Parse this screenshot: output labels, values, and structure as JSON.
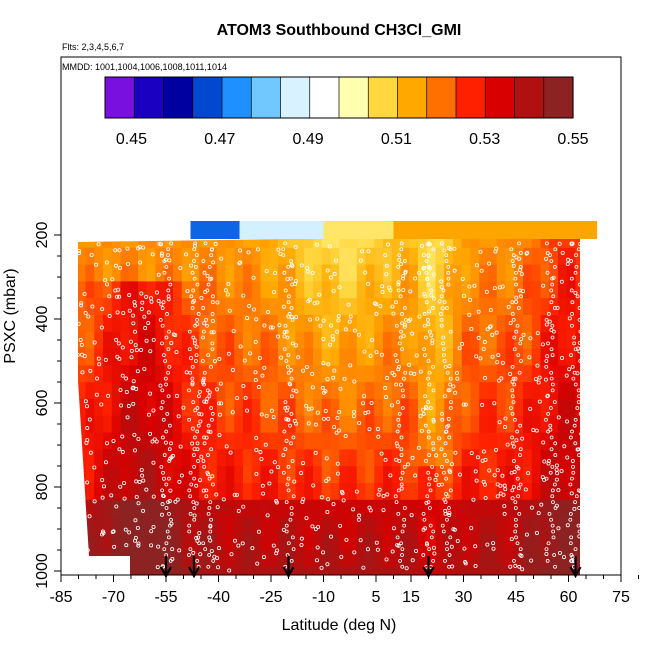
{
  "chart_data": {
    "type": "heatmap",
    "title": "ATOM3 Southbound CH3Cl_GMI",
    "flights_note": "Flts: 2,3,4,5,6,7",
    "mmdd_note": "MMDD: 1001,1004,1006,1008,1011,1014",
    "xlabel": "Latitude (deg N)",
    "ylabel": "PSXC (mbar)",
    "x_ticks": [
      -85,
      -70,
      -55,
      -40,
      -25,
      -10,
      5,
      15,
      30,
      45,
      60,
      75
    ],
    "x_tick_labels": [
      "-85",
      "-70",
      "-55",
      "-40",
      "-25",
      "-10",
      "5",
      "15",
      "30",
      "45",
      "60",
      "75"
    ],
    "xlim": [
      -85,
      75
    ],
    "y_ticks": [
      200,
      400,
      600,
      800,
      1000
    ],
    "y_tick_labels": [
      "200",
      "400",
      "600",
      "800",
      "1000"
    ],
    "ylim": [
      1000,
      200
    ],
    "y_reversed": true,
    "colorbar": {
      "min": 0.444,
      "max": 0.55,
      "tick_values": [
        0.45,
        0.47,
        0.49,
        0.51,
        0.53,
        0.55
      ],
      "tick_labels": [
        "0.45",
        "0.47",
        "0.49",
        "0.51",
        "0.53",
        "0.55"
      ],
      "colors": [
        "#7a10e0",
        "#1a00c0",
        "#0000a0",
        "#0048d0",
        "#1e90ff",
        "#70c8ff",
        "#d8f2ff",
        "#ffffff",
        "#ffffb0",
        "#ffd840",
        "#ffa800",
        "#ff7000",
        "#ff2000",
        "#d80000",
        "#b01010",
        "#8c2222"
      ]
    },
    "profile_latitudes": [
      -55,
      -47,
      -20,
      20,
      62
    ],
    "notes": "Curtain plot of modeled CH3Cl along ATom-3 southbound flight track; white circles mark sampled profile points; arrows mark profile locations."
  }
}
